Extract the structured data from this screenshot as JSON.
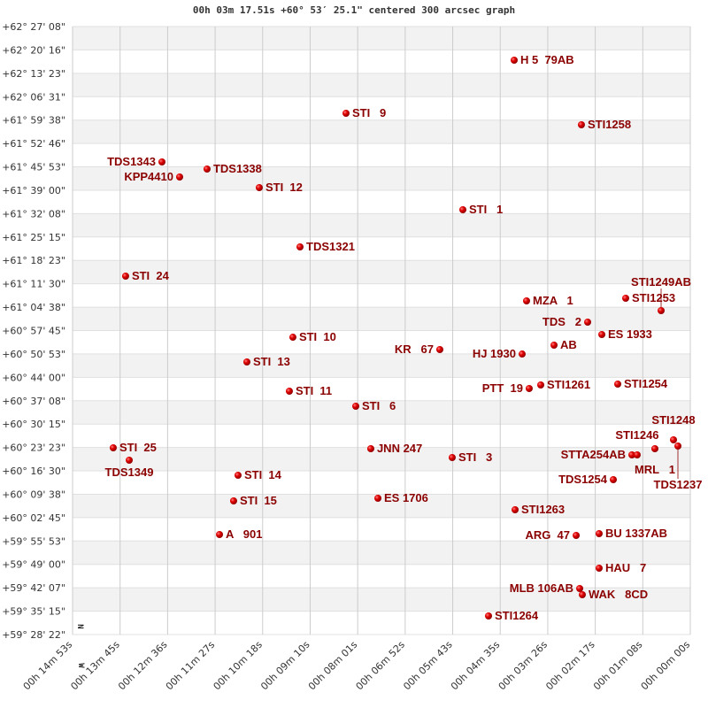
{
  "chart_data": {
    "type": "scatter",
    "title": "00h 03m 17.51s +60° 53′ 25.1\" centered 300 arcsec graph",
    "xlabel": "",
    "ylabel": "",
    "x_units": "right ascension seconds (00h 00m 00s = 0)",
    "y_units": "declination degrees",
    "xlim": [
      893,
      0
    ],
    "ylim": [
      59.47278,
      62.45222
    ],
    "grid": true,
    "banded_rows": true,
    "orientation_markers": {
      "north": "N",
      "west": "W"
    },
    "colors": {
      "point": "#dd0000",
      "label": "#8b0000",
      "band": "#f2f2f2",
      "grid": "#cccccc"
    },
    "y_ticks": [
      "+62° 27' 08\"",
      "+62° 20' 16\"",
      "+62° 13' 23\"",
      "+62° 06' 31\"",
      "+61° 59' 38\"",
      "+61° 52' 46\"",
      "+61° 45' 53\"",
      "+61° 39' 00\"",
      "+61° 32' 08\"",
      "+61° 25' 15\"",
      "+61° 18' 23\"",
      "+61° 11' 30\"",
      "+61° 04' 38\"",
      "+60° 57' 45\"",
      "+60° 50' 53\"",
      "+60° 44' 00\"",
      "+60° 37' 08\"",
      "+60° 30' 15\"",
      "+60° 23' 23\"",
      "+60° 16' 30\"",
      "+60° 09' 38\"",
      "+60° 02' 45\"",
      "+59° 55' 53\"",
      "+59° 49' 00\"",
      "+59° 42' 07\"",
      "+59° 35' 15\"",
      "+59° 28' 22\""
    ],
    "x_ticks": [
      "00h 14m 53s",
      "00h 13m 45s",
      "00h 12m 36s",
      "00h 11m 27s",
      "00h 10m 18s",
      "00h 09m 10s",
      "00h 08m 01s",
      "00h 06m 52s",
      "00h 05m 43s",
      "00h 04m 35s",
      "00h 03m 26s",
      "00h 02m 17s",
      "00h 01m 08s",
      "00h 00m 00s"
    ],
    "points": [
      {
        "name": "H 5  79AB",
        "ra": 254.6,
        "dec": 62.2874
      },
      {
        "name": "STI   9",
        "ra": 497.7,
        "dec": 62.0272
      },
      {
        "name": "STI1258",
        "ra": 157.4,
        "dec": 61.9708
      },
      {
        "name": "TDS1343",
        "ra": 763.8,
        "dec": 61.7887
      },
      {
        "name": "TDS1338",
        "ra": 698.6,
        "dec": 61.754
      },
      {
        "name": "KPP4410",
        "ra": 738.2,
        "dec": 61.7149
      },
      {
        "name": "STI  12",
        "ra": 623.1,
        "dec": 61.6629
      },
      {
        "name": "STI   1",
        "ra": 328.8,
        "dec": 61.5545
      },
      {
        "name": "TDS1321",
        "ra": 564.2,
        "dec": 61.3723
      },
      {
        "name": "STI  24",
        "ra": 816.3,
        "dec": 61.2292
      },
      {
        "name": "MZA   1",
        "ra": 236.7,
        "dec": 61.1078
      },
      {
        "name": "STI1253",
        "ra": 93.4,
        "dec": 61.1208
      },
      {
        "name": "STI1249AB",
        "ra": 42.2,
        "dec": 61.0601
      },
      {
        "name": "TDS   2",
        "ra": 148.4,
        "dec": 61.0037
      },
      {
        "name": "ES 1933",
        "ra": 127.9,
        "dec": 60.943
      },
      {
        "name": "STI  10",
        "ra": 574.5,
        "dec": 60.9299
      },
      {
        "name": "KR   67",
        "ra": 362.1,
        "dec": 60.8692
      },
      {
        "name": "AB",
        "ra": 197.0,
        "dec": 60.8909
      },
      {
        "name": "HJ 1930",
        "ra": 243.1,
        "dec": 60.8475
      },
      {
        "name": "STI  13",
        "ra": 641.0,
        "dec": 60.8085
      },
      {
        "name": "PTT  19",
        "ra": 232.9,
        "dec": 60.6784
      },
      {
        "name": "STI1261",
        "ra": 216.2,
        "dec": 60.6958
      },
      {
        "name": "STI1254",
        "ra": 104.9,
        "dec": 60.7001
      },
      {
        "name": "STI  11",
        "ra": 579.6,
        "dec": 60.6654
      },
      {
        "name": "STI   6",
        "ra": 483.6,
        "dec": 60.5917
      },
      {
        "name": "STI  25",
        "ra": 834.2,
        "dec": 60.3878
      },
      {
        "name": "TDS1349",
        "ra": 811.1,
        "dec": 60.3271
      },
      {
        "name": "JNN 247",
        "ra": 461.9,
        "dec": 60.3835
      },
      {
        "name": "STI   3",
        "ra": 344.2,
        "dec": 60.3401
      },
      {
        "name": "STI  14",
        "ra": 653.8,
        "dec": 60.2534
      },
      {
        "name": "TDS1254",
        "ra": 111.3,
        "dec": 60.2317
      },
      {
        "name": "STI  15",
        "ra": 660.2,
        "dec": 60.1276
      },
      {
        "name": "ES 1706",
        "ra": 451.6,
        "dec": 60.1406
      },
      {
        "name": "STI1263",
        "ra": 253.3,
        "dec": 60.0843
      },
      {
        "name": "ARG  47",
        "ra": 165.0,
        "dec": 59.9585
      },
      {
        "name": "BU 1337AB",
        "ra": 131.8,
        "dec": 59.9672
      },
      {
        "name": "A   901",
        "ra": 680.6,
        "dec": 59.9628
      },
      {
        "name": "HAU   7",
        "ra": 131.8,
        "dec": 59.798
      },
      {
        "name": "MLB 106AB",
        "ra": 159.9,
        "dec": 59.6983
      },
      {
        "name": "WAK   8CD",
        "ra": 156.1,
        "dec": 59.6679
      },
      {
        "name": "STI1264",
        "ra": 291.7,
        "dec": 59.5638
      },
      {
        "name": "STTA254AB",
        "ra": 84.4,
        "dec": 60.3531
      },
      {
        "name": "STI1246",
        "ra": 76.8,
        "dec": 60.3531
      },
      {
        "name": "MRL   1",
        "ra": 51.2,
        "dec": 60.3835
      },
      {
        "name": "STI1248",
        "ra": 24.3,
        "dec": 60.4269
      },
      {
        "name": "TDS1237",
        "ra": 17.9,
        "dec": 60.3965
      }
    ]
  }
}
